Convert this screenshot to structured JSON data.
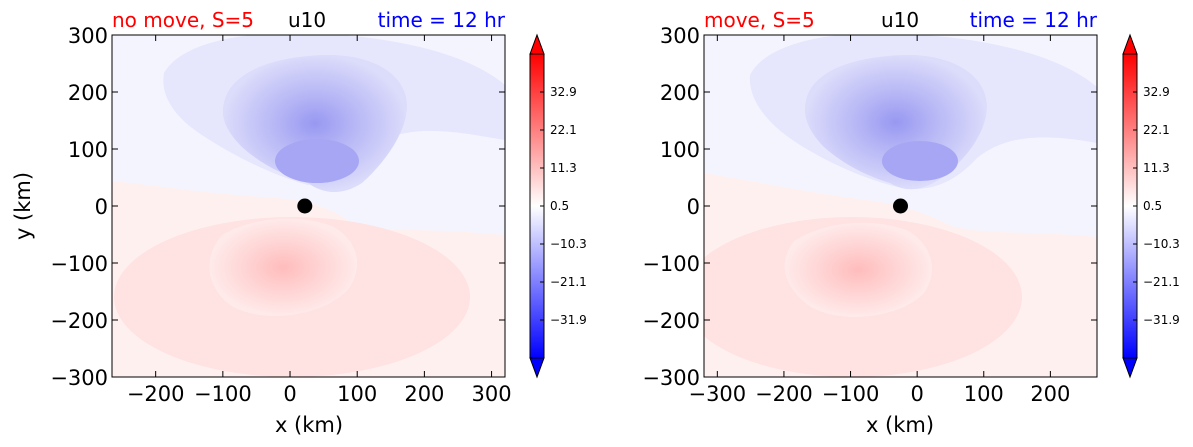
{
  "chart_data": [
    {
      "type": "heatmap",
      "title_left": "no move, S=5",
      "title_center": "u10",
      "title_right": "time = 12 hr",
      "title_left_color": "#ff0000",
      "title_center_color": "#000000",
      "title_right_color": "#0000ff",
      "xlabel": "x (km)",
      "ylabel": "y (km)",
      "xlim": [
        -265,
        320
      ],
      "ylim": [
        -300,
        300
      ],
      "xticks": [
        -200,
        -100,
        0,
        100,
        200,
        300
      ],
      "xtick_labels": [
        "−200",
        "−100",
        "0",
        "100",
        "200",
        "300"
      ],
      "yticks": [
        -300,
        -200,
        -100,
        0,
        100,
        200,
        300
      ],
      "ytick_labels": [
        "−300",
        "−200",
        "−100",
        "0",
        "100",
        "200",
        "300"
      ],
      "center_marker": [
        22,
        0
      ],
      "colorbar": {
        "ticks": [
          32.9,
          22.1,
          11.3,
          0.5,
          -10.3,
          -21.1,
          -31.9
        ],
        "tick_labels": [
          "32.9",
          "22.1",
          "11.3",
          "0.5",
          "−10.3",
          "−21.1",
          "−31.9"
        ],
        "range": [
          -42.7,
          43.7
        ],
        "colormap": "bwr"
      }
    },
    {
      "type": "heatmap",
      "title_left": "move, S=5",
      "title_center": "u10",
      "title_right": "time = 12 hr",
      "title_left_color": "#ff0000",
      "title_center_color": "#000000",
      "title_right_color": "#0000ff",
      "xlabel": "x (km)",
      "ylabel": "",
      "xlim": [
        -320,
        270
      ],
      "ylim": [
        -300,
        300
      ],
      "xticks": [
        -300,
        -200,
        -100,
        0,
        100,
        200
      ],
      "xtick_labels": [
        "−300",
        "−200",
        "−100",
        "0",
        "100",
        "200"
      ],
      "yticks": [
        -300,
        -200,
        -100,
        0,
        100,
        200,
        300
      ],
      "ytick_labels": [
        "−300",
        "−200",
        "−100",
        "0",
        "100",
        "200",
        "300"
      ],
      "center_marker": [
        -25,
        0
      ],
      "colorbar": {
        "ticks": [
          32.9,
          22.1,
          11.3,
          0.5,
          -10.3,
          -21.1,
          -31.9
        ],
        "tick_labels": [
          "32.9",
          "22.1",
          "11.3",
          "0.5",
          "−10.3",
          "−21.1",
          "−31.9"
        ],
        "range": [
          -42.7,
          43.7
        ],
        "colormap": "bwr"
      }
    }
  ]
}
